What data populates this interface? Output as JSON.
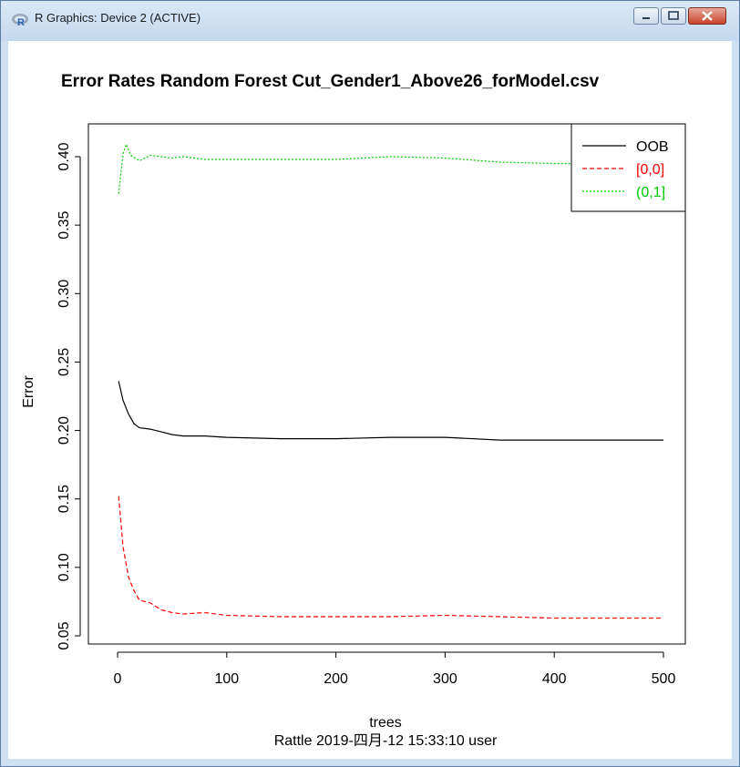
{
  "window": {
    "title": "R Graphics: Device 2 (ACTIVE)",
    "icon": "r-logo-icon",
    "controls": [
      "minimize-icon",
      "maximize-icon",
      "close-icon"
    ]
  },
  "chart_data": {
    "type": "line",
    "title": "Error Rates Random Forest Cut_Gender1_Above26_forModel.csv",
    "xlabel": "trees",
    "ylabel": "Error",
    "sub": "Rattle 2019-四月-12 15:33:10 user",
    "xlim": [
      0,
      500
    ],
    "ylim": [
      0.05,
      0.41
    ],
    "xticks": [
      0,
      100,
      200,
      300,
      400,
      500
    ],
    "xtick_labels": [
      "0",
      "100",
      "200",
      "300",
      "400",
      "500"
    ],
    "yticks": [
      0.05,
      0.1,
      0.15,
      0.2,
      0.25,
      0.3,
      0.35,
      0.4
    ],
    "ytick_labels": [
      "0.05",
      "0.10",
      "0.15",
      "0.20",
      "0.25",
      "0.30",
      "0.35",
      "0.40"
    ],
    "legend": {
      "position": "top-right",
      "entries": [
        "OOB",
        "[0,0]",
        "(0,1]"
      ]
    },
    "series": [
      {
        "name": "OOB",
        "color": "#000000",
        "dash": "solid",
        "x": [
          1,
          5,
          10,
          15,
          20,
          30,
          40,
          50,
          60,
          80,
          100,
          150,
          200,
          250,
          300,
          350,
          400,
          450,
          500
        ],
        "values": [
          0.236,
          0.222,
          0.212,
          0.205,
          0.202,
          0.201,
          0.199,
          0.197,
          0.196,
          0.196,
          0.195,
          0.194,
          0.194,
          0.195,
          0.195,
          0.193,
          0.193,
          0.193,
          0.193
        ]
      },
      {
        "name": "[0,0]",
        "color": "#ff0000",
        "dash": "dashed",
        "x": [
          1,
          5,
          10,
          15,
          20,
          30,
          40,
          50,
          60,
          80,
          100,
          150,
          200,
          250,
          300,
          350,
          400,
          450,
          500
        ],
        "values": [
          0.152,
          0.115,
          0.093,
          0.083,
          0.076,
          0.074,
          0.069,
          0.067,
          0.066,
          0.067,
          0.065,
          0.064,
          0.064,
          0.064,
          0.065,
          0.064,
          0.063,
          0.063,
          0.063
        ]
      },
      {
        "name": "(0,1]",
        "color": "#00cd00",
        "dash": "dotted",
        "x": [
          1,
          5,
          8,
          12,
          20,
          30,
          40,
          50,
          60,
          80,
          100,
          150,
          200,
          250,
          300,
          350,
          400,
          450,
          500
        ],
        "values": [
          0.373,
          0.402,
          0.409,
          0.401,
          0.397,
          0.401,
          0.4,
          0.399,
          0.4,
          0.398,
          0.398,
          0.398,
          0.398,
          0.4,
          0.399,
          0.396,
          0.395,
          0.395,
          0.396
        ]
      }
    ]
  }
}
